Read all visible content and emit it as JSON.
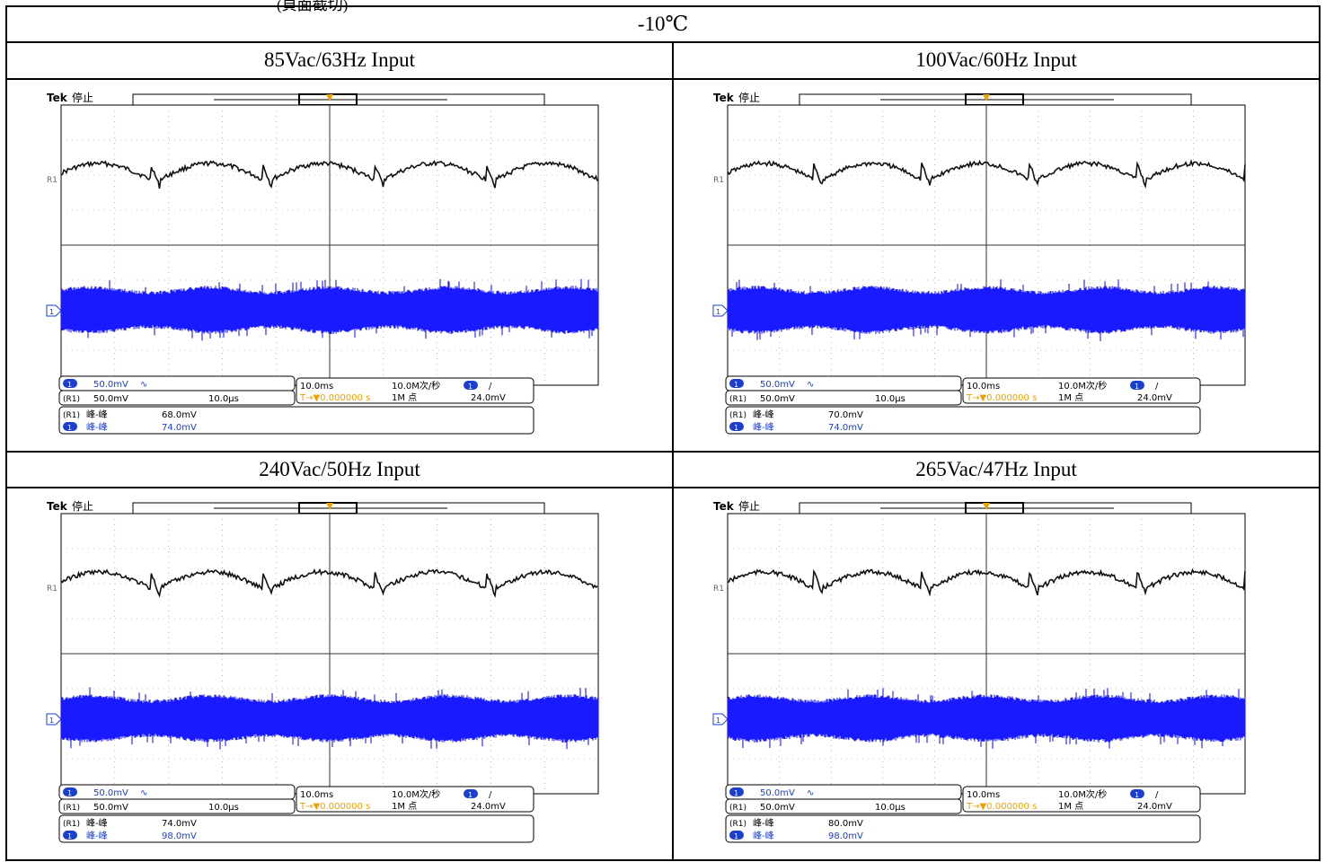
{
  "document": {
    "cut_text": "(頁面截切)",
    "temperature": "-10℃",
    "panels": [
      {
        "label": "85Vac/63Hz Input",
        "scope": {
          "brand": "Tek",
          "state": "停止",
          "ref_marker": "R1",
          "ch_marker": "1",
          "ch1_scale": "50.0mV",
          "ch1_coupling": "∿",
          "ref1_scale": "50.0mV",
          "ref1_time": "10.0µs",
          "timebase": "10.0ms",
          "sample_rate": "10.0M次/秒",
          "trigger_pos": "T→▼0.000000 s",
          "record_length": "1M 点",
          "trigger_level": "24.0mV",
          "trigger_slope": "/",
          "meas_ref_label": "峰-峰",
          "meas_ref_value": "68.0mV",
          "meas_ch1_label": "峰-峰",
          "meas_ch1_value": "74.0mV"
        }
      },
      {
        "label": "100Vac/60Hz Input",
        "scope": {
          "brand": "Tek",
          "state": "停止",
          "ref_marker": "R1",
          "ch_marker": "1",
          "ch1_scale": "50.0mV",
          "ch1_coupling": "∿",
          "ref1_scale": "50.0mV",
          "ref1_time": "10.0µs",
          "timebase": "10.0ms",
          "sample_rate": "10.0M次/秒",
          "trigger_pos": "T→▼0.000000 s",
          "record_length": "1M 点",
          "trigger_level": "24.0mV",
          "trigger_slope": "/",
          "meas_ref_label": "峰-峰",
          "meas_ref_value": "70.0mV",
          "meas_ch1_label": "峰-峰",
          "meas_ch1_value": "74.0mV"
        }
      },
      {
        "label": "240Vac/50Hz Input",
        "scope": {
          "brand": "Tek",
          "state": "停止",
          "ref_marker": "R1",
          "ch_marker": "1",
          "ch1_scale": "50.0mV",
          "ch1_coupling": "∿",
          "ref1_scale": "50.0mV",
          "ref1_time": "10.0µs",
          "timebase": "10.0ms",
          "sample_rate": "10.0M次/秒",
          "trigger_pos": "T→▼0.000000 s",
          "record_length": "1M 点",
          "trigger_level": "24.0mV",
          "trigger_slope": "/",
          "meas_ref_label": "峰-峰",
          "meas_ref_value": "74.0mV",
          "meas_ch1_label": "峰-峰",
          "meas_ch1_value": "98.0mV"
        }
      },
      {
        "label": "265Vac/47Hz Input",
        "scope": {
          "brand": "Tek",
          "state": "停止",
          "ref_marker": "R1",
          "ch_marker": "1",
          "ch1_scale": "50.0mV",
          "ch1_coupling": "∿",
          "ref1_scale": "50.0mV",
          "ref1_time": "10.0µs",
          "timebase": "10.0ms",
          "sample_rate": "10.0M次/秒",
          "trigger_pos": "T→▼0.000000 s",
          "record_length": "1M 点",
          "trigger_level": "24.0mV",
          "trigger_slope": "/",
          "meas_ref_label": "峰-峰",
          "meas_ref_value": "80.0mV",
          "meas_ch1_label": "峰-峰",
          "meas_ch1_value": "98.0mV"
        }
      }
    ]
  },
  "colors": {
    "ref_trace": "#111111",
    "ch1_trace": "#1a1aff",
    "trigger": "#f0a000",
    "ch1_badge": "#1a3fcf"
  }
}
